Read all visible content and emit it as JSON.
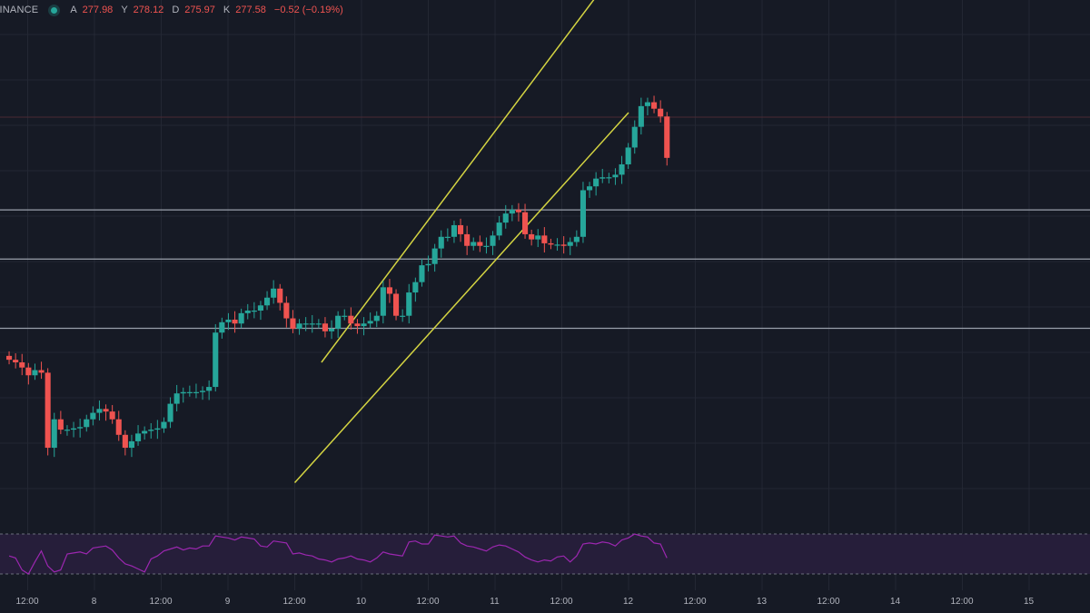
{
  "legend": {
    "symbol": "BINANCE",
    "open_label": "A",
    "open": "277.98",
    "high_label": "Y",
    "high": "278.12",
    "low_label": "D",
    "low": "275.97",
    "close_label": "K",
    "close": "277.58",
    "change": "−0.52 (−0.19%)"
  },
  "colors": {
    "background": "#161a25",
    "grid": "#232733",
    "up": "#26a69a",
    "down": "#ef5350",
    "channel": "#d4d442",
    "level": "#9aa0ab",
    "rsi_line": "#9c27b0",
    "rsi_fill": "#261e3a"
  },
  "time_axis": {
    "labels": [
      "12:00",
      "8",
      "12:00",
      "9",
      "12:00",
      "10",
      "12:00",
      "11",
      "12:00",
      "12",
      "12:00",
      "13",
      "12:00",
      "14",
      "12:00",
      "15"
    ]
  },
  "chart_data": {
    "type": "candlestick",
    "interval": "1h",
    "x_axis": "time",
    "y_axis": "price",
    "candles_close": [
      272.2,
      272.0,
      271.6,
      271.0,
      271.4,
      271.2,
      265.4,
      267.6,
      266.8,
      266.8,
      266.9,
      267.0,
      267.6,
      268.1,
      268.4,
      268.2,
      267.6,
      266.4,
      265.4,
      265.9,
      266.5,
      266.7,
      266.8,
      266.9,
      267.4,
      268.8,
      269.6,
      269.7,
      269.7,
      269.7,
      269.8,
      270.1,
      274.3,
      275.1,
      275.3,
      275.0,
      275.8,
      276.0,
      276.0,
      276.4,
      277.0,
      277.7,
      276.6,
      275.4,
      274.6,
      275.0,
      275.0,
      275.0,
      275.0,
      274.4,
      274.6,
      275.6,
      275.6,
      275.0,
      274.8,
      275.0,
      275.2,
      275.6,
      277.8,
      277.3,
      275.6,
      275.6,
      277.4,
      278.2,
      279.5,
      279.6,
      280.8,
      281.7,
      281.7,
      282.6,
      281.9,
      281.0,
      281.3,
      281.0,
      281.0,
      281.8,
      282.8,
      283.5,
      283.8,
      283.6,
      281.9,
      281.5,
      281.8,
      281.2,
      281.1,
      281.1,
      281.0,
      281.3,
      281.7,
      285.3,
      285.6,
      286.2,
      286.3,
      286.3,
      286.5,
      287.3,
      288.6,
      290.2,
      291.8,
      292.1,
      291.6,
      291.0,
      287.8
    ],
    "candles_count": 103,
    "overlays": [
      {
        "type": "parallel_channel",
        "upper": [
          [
            9.7,
            272.0
          ],
          [
            12.0,
            303.6
          ]
        ],
        "lower": [
          [
            9.5,
            262.7
          ],
          [
            12.0,
            291.3
          ]
        ]
      },
      {
        "type": "horizontal_level",
        "price": 283.78
      },
      {
        "type": "horizontal_level",
        "price": 279.98
      },
      {
        "type": "horizontal_level",
        "price": 274.63
      }
    ],
    "x_day_labels": [
      "8",
      "9",
      "10",
      "11",
      "12",
      "13",
      "14",
      "15"
    ],
    "indicator": {
      "type": "rsi_line",
      "values": [
        48,
        46,
        34,
        30,
        42,
        53,
        38,
        32,
        34,
        50,
        51,
        52,
        50,
        56,
        57,
        58,
        54,
        46,
        40,
        38,
        35,
        32,
        45,
        48,
        53,
        55,
        57,
        54,
        56,
        55,
        58,
        58,
        68,
        67,
        66,
        64,
        67,
        66,
        65,
        58,
        57,
        63,
        62,
        61,
        50,
        51,
        49,
        48,
        45,
        44,
        42,
        45,
        46,
        48,
        45,
        44,
        42,
        46,
        52,
        50,
        49,
        48,
        62,
        63,
        60,
        60,
        69,
        68,
        67,
        68,
        61,
        58,
        57,
        55,
        53,
        57,
        59,
        58,
        55,
        52,
        47,
        44,
        42,
        44,
        43,
        47,
        48,
        42,
        48,
        60,
        61,
        60,
        62,
        61,
        58,
        64,
        66,
        70,
        68,
        67,
        61,
        60,
        46
      ],
      "upper_band": 70,
      "lower_band": 30
    }
  }
}
